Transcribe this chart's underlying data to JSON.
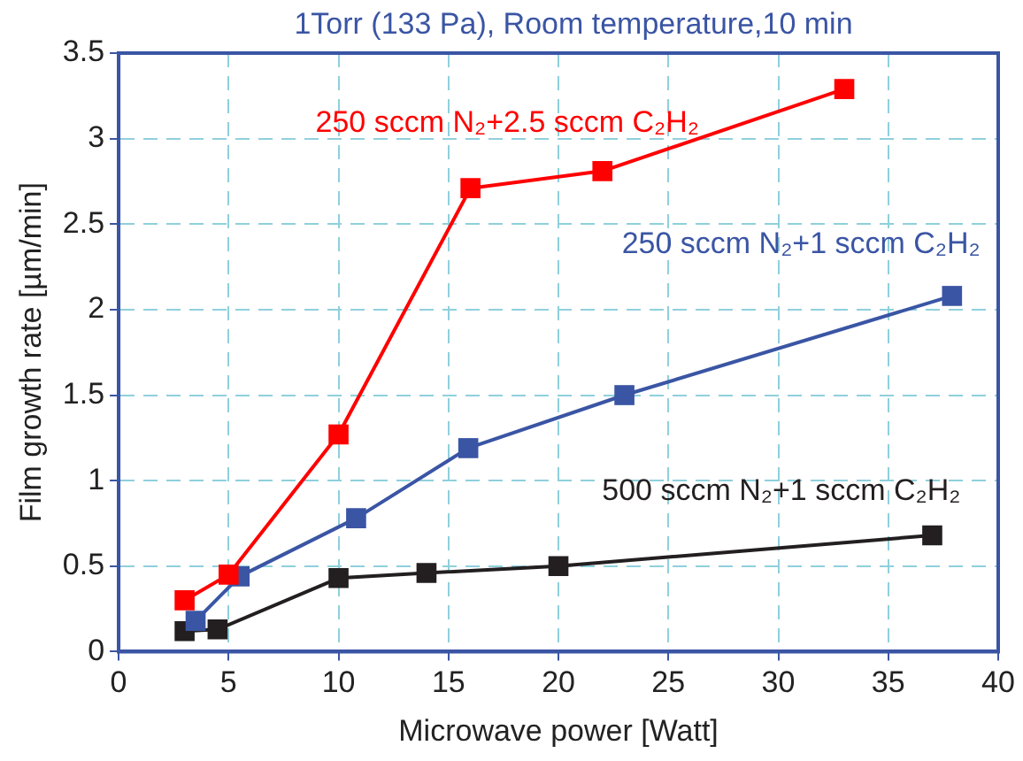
{
  "chart_data": {
    "type": "line",
    "title": "1Torr (133 Pa), Room temperature,10 min",
    "xlabel": "Microwave power [Watt]",
    "ylabel": "Film growth rate [µm/min]",
    "xlim": [
      0,
      40
    ],
    "xticks": [
      0,
      5,
      10,
      15,
      20,
      25,
      30,
      35,
      40
    ],
    "ylim": [
      0,
      3.5
    ],
    "yticks": [
      0,
      0.5,
      1,
      1.5,
      2,
      2.5,
      3,
      3.5
    ],
    "grid": true,
    "marker": "square",
    "line_style": "solid",
    "series": [
      {
        "name": "250 sccm N₂+2.5 sccm C₂H₂",
        "color": "#ff0000",
        "x": [
          3,
          5,
          10,
          16,
          22,
          33
        ],
        "values": [
          0.3,
          0.45,
          1.27,
          2.71,
          2.81,
          3.29
        ]
      },
      {
        "name": "250 sccm N₂+1 sccm C₂H₂",
        "color": "#3a55a4",
        "x": [
          3.5,
          5.5,
          10.8,
          15.9,
          23,
          37.9
        ],
        "values": [
          0.18,
          0.44,
          0.78,
          1.19,
          1.5,
          2.08
        ]
      },
      {
        "name": "500 sccm N₂+1 sccm C₂H₂",
        "color": "#231f20",
        "x": [
          3,
          4.5,
          10,
          14,
          20,
          37
        ],
        "values": [
          0.12,
          0.13,
          0.43,
          0.46,
          0.5,
          0.68
        ]
      }
    ]
  }
}
